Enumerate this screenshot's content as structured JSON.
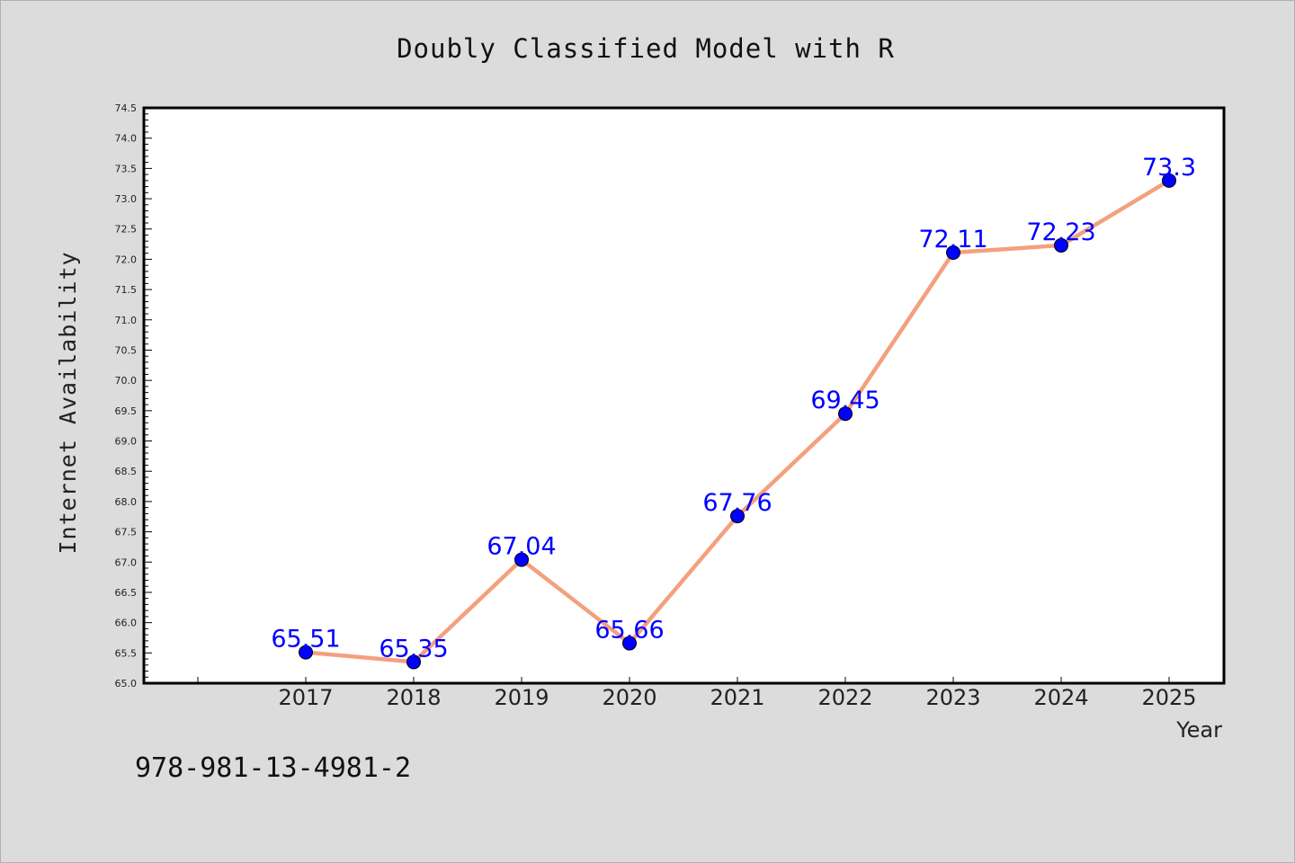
{
  "chart_data": {
    "type": "line",
    "title": "Doubly Classified Model with R",
    "xlabel": "Year",
    "ylabel": "Internet Availability",
    "categories": [
      "2017",
      "2018",
      "2019",
      "2020",
      "2021",
      "2022",
      "2023",
      "2024",
      "2025"
    ],
    "series": [
      {
        "values": [
          65.51,
          65.35,
          67.04,
          65.66,
          67.76,
          69.45,
          72.11,
          72.23,
          73.3
        ],
        "labels": [
          "65.51",
          "65.35",
          "67.04",
          "65.66",
          "67.76",
          "69.45",
          "72.11",
          "72.23",
          "73.3"
        ],
        "line_color": "#f4a07e",
        "marker_color": "#0000ff"
      }
    ],
    "ylim": [
      65.0,
      74.5
    ],
    "yticks": [
      "65.0",
      "65.5",
      "66.0",
      "66.5",
      "67.0",
      "67.5",
      "68.0",
      "68.5",
      "69.0",
      "69.5",
      "70.0",
      "70.5",
      "71.0",
      "71.5",
      "72.0",
      "72.5",
      "73.0",
      "73.5",
      "74.0",
      "74.5"
    ],
    "grid": false,
    "legend": "none"
  },
  "footer": {
    "isbn": "978-981-13-4981-2"
  }
}
